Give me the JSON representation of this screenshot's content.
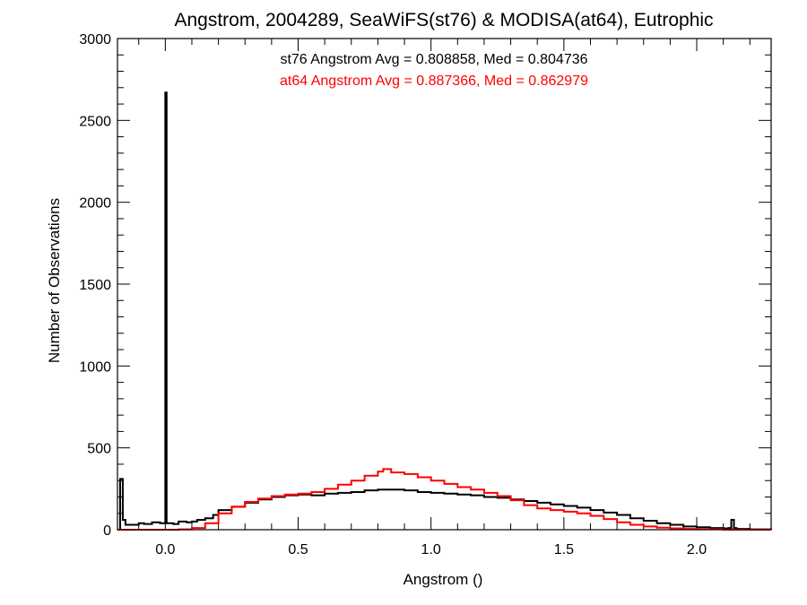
{
  "chart_data": {
    "type": "histogram",
    "title": "Angstrom, 2004289, SeaWiFS(st76) & MODISA(at64), Eutrophic",
    "xlabel": "Angstrom ()",
    "ylabel": "Number of Observations",
    "xlim": [
      -0.18,
      2.28
    ],
    "ylim": [
      0,
      3000
    ],
    "xticks": [
      0.0,
      0.5,
      1.0,
      1.5,
      2.0
    ],
    "xtick_labels": [
      "0.0",
      "0.5",
      "1.0",
      "1.5",
      "2.0"
    ],
    "yticks": [
      0,
      500,
      1000,
      1500,
      2000,
      2500,
      3000
    ],
    "ytick_labels": [
      "0",
      "500",
      "1000",
      "1500",
      "2000",
      "2500",
      "3000"
    ],
    "annotations": [
      {
        "text": "st76 Angstrom Avg = 0.808858, Med = 0.804736",
        "color": "#000000"
      },
      {
        "text": "at64 Angstrom Avg = 0.887366, Med = 0.862979",
        "color": "#ff0000"
      }
    ],
    "series": [
      {
        "color": "#000000",
        "points": [
          [
            -0.18,
            0
          ],
          [
            -0.17,
            310
          ],
          [
            -0.16,
            60
          ],
          [
            -0.15,
            30
          ],
          [
            -0.12,
            30
          ],
          [
            -0.1,
            40
          ],
          [
            -0.08,
            35
          ],
          [
            -0.05,
            45
          ],
          [
            -0.02,
            40
          ],
          [
            -0.005,
            40
          ],
          [
            0.0,
            2670
          ],
          [
            0.005,
            40
          ],
          [
            0.03,
            35
          ],
          [
            0.05,
            50
          ],
          [
            0.08,
            45
          ],
          [
            0.1,
            50
          ],
          [
            0.12,
            60
          ],
          [
            0.15,
            70
          ],
          [
            0.18,
            90
          ],
          [
            0.2,
            120
          ],
          [
            0.25,
            140
          ],
          [
            0.3,
            165
          ],
          [
            0.35,
            185
          ],
          [
            0.4,
            200
          ],
          [
            0.45,
            210
          ],
          [
            0.5,
            215
          ],
          [
            0.55,
            210
          ],
          [
            0.6,
            220
          ],
          [
            0.65,
            225
          ],
          [
            0.7,
            230
          ],
          [
            0.75,
            240
          ],
          [
            0.8,
            245
          ],
          [
            0.85,
            245
          ],
          [
            0.9,
            240
          ],
          [
            0.95,
            230
          ],
          [
            1.0,
            225
          ],
          [
            1.05,
            220
          ],
          [
            1.1,
            215
          ],
          [
            1.15,
            210
          ],
          [
            1.2,
            200
          ],
          [
            1.25,
            195
          ],
          [
            1.3,
            185
          ],
          [
            1.35,
            175
          ],
          [
            1.4,
            165
          ],
          [
            1.45,
            155
          ],
          [
            1.5,
            145
          ],
          [
            1.55,
            135
          ],
          [
            1.6,
            120
          ],
          [
            1.65,
            105
          ],
          [
            1.7,
            90
          ],
          [
            1.75,
            70
          ],
          [
            1.8,
            55
          ],
          [
            1.85,
            40
          ],
          [
            1.9,
            30
          ],
          [
            1.95,
            20
          ],
          [
            2.0,
            15
          ],
          [
            2.05,
            10
          ],
          [
            2.1,
            8
          ],
          [
            2.12,
            10
          ],
          [
            2.13,
            60
          ],
          [
            2.14,
            10
          ],
          [
            2.15,
            5
          ],
          [
            2.2,
            2
          ],
          [
            2.28,
            0
          ]
        ]
      },
      {
        "color": "#ff0000",
        "points": [
          [
            -0.18,
            0
          ],
          [
            0.0,
            0
          ],
          [
            0.05,
            2
          ],
          [
            0.1,
            10
          ],
          [
            0.15,
            40
          ],
          [
            0.2,
            100
          ],
          [
            0.25,
            140
          ],
          [
            0.3,
            170
          ],
          [
            0.35,
            190
          ],
          [
            0.4,
            205
          ],
          [
            0.45,
            215
          ],
          [
            0.5,
            220
          ],
          [
            0.55,
            230
          ],
          [
            0.6,
            250
          ],
          [
            0.65,
            275
          ],
          [
            0.7,
            300
          ],
          [
            0.75,
            330
          ],
          [
            0.8,
            355
          ],
          [
            0.82,
            370
          ],
          [
            0.85,
            350
          ],
          [
            0.9,
            340
          ],
          [
            0.95,
            320
          ],
          [
            1.0,
            300
          ],
          [
            1.05,
            280
          ],
          [
            1.1,
            260
          ],
          [
            1.15,
            245
          ],
          [
            1.2,
            225
          ],
          [
            1.25,
            205
          ],
          [
            1.3,
            180
          ],
          [
            1.35,
            150
          ],
          [
            1.4,
            130
          ],
          [
            1.45,
            120
          ],
          [
            1.5,
            110
          ],
          [
            1.55,
            100
          ],
          [
            1.6,
            85
          ],
          [
            1.65,
            65
          ],
          [
            1.7,
            45
          ],
          [
            1.75,
            30
          ],
          [
            1.8,
            20
          ],
          [
            1.85,
            12
          ],
          [
            1.9,
            8
          ],
          [
            1.95,
            5
          ],
          [
            2.0,
            3
          ],
          [
            2.1,
            1
          ],
          [
            2.28,
            0
          ]
        ]
      }
    ]
  }
}
